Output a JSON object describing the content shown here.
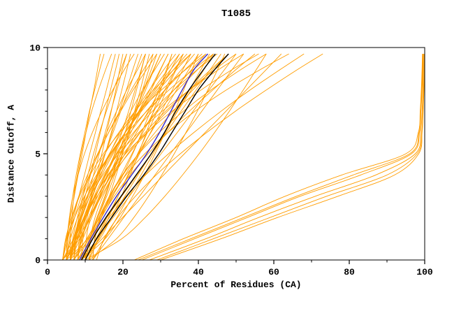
{
  "figure": {
    "title": "T1085",
    "xlabel": "Percent of Residues (CA)",
    "ylabel": "Distance Cutoff, A"
  },
  "chart_data": {
    "type": "line",
    "title": "T1085",
    "xlabel": "Percent of Residues (CA)",
    "ylabel": "Distance Cutoff, A",
    "xlim": [
      0,
      100
    ],
    "ylim": [
      0,
      10
    ],
    "grid": false,
    "legend": null,
    "frame": "box",
    "x_major_ticks": [
      0,
      20,
      40,
      60,
      80,
      100
    ],
    "x_minor_ticks": [
      10,
      30,
      50,
      70,
      90
    ],
    "y_major_ticks": [
      0,
      5,
      10
    ],
    "y_minor_ticks": [
      1,
      2,
      3,
      4,
      6,
      7,
      8,
      9
    ],
    "colors": {
      "ensemble": "#ff9d00",
      "highlight_black": "#000000",
      "highlight_blue": "#3528c9"
    },
    "cutoffs": [
      0,
      1,
      2,
      3,
      4,
      5,
      6,
      7,
      8,
      9,
      9.7
    ],
    "groups": [
      {
        "name": "predicted-models",
        "color": "#ff9d00",
        "stroke_width": 0.9,
        "curves": [
          [
            5,
            7.6,
            10.2,
            12.7,
            15.3,
            17.9,
            20.5,
            23.1,
            25.6,
            28.2,
            30
          ],
          [
            6,
            6.9,
            8.6,
            10.8,
            13.4,
            16.4,
            19.6,
            23.2,
            27,
            31,
            34
          ],
          [
            7,
            7.3,
            8.3,
            9.9,
            12.3,
            15.2,
            18.9,
            23.2,
            28.1,
            33.7,
            38
          ],
          [
            4,
            8.5,
            11.3,
            13.7,
            15.8,
            17.8,
            19.7,
            21.5,
            23.2,
            24.9,
            26
          ],
          [
            8,
            9.1,
            11.2,
            13.8,
            17,
            20.6,
            24.6,
            28.9,
            33.5,
            38.4,
            42
          ],
          [
            9,
            9.4,
            10.5,
            12.4,
            15.1,
            18.5,
            22.8,
            27.8,
            33.5,
            40,
            45
          ],
          [
            5,
            8.1,
            11.2,
            14.3,
            17.4,
            20.5,
            23.6,
            26.7,
            29.8,
            32.8,
            35
          ],
          [
            6,
            10.5,
            13.3,
            15.7,
            17.8,
            19.8,
            21.7,
            23.5,
            25.2,
            26.9,
            28
          ],
          [
            10,
            11.3,
            13.6,
            16.5,
            20,
            24.1,
            28.5,
            33.3,
            38.5,
            44,
            48
          ],
          [
            7,
            10.4,
            13.8,
            17.2,
            20.6,
            24,
            27.4,
            30.8,
            34.2,
            37.6,
            40
          ],
          [
            4,
            7.7,
            10,
            11.9,
            13.7,
            15.3,
            16.9,
            18.3,
            19.7,
            21.1,
            22
          ],
          [
            8,
            10.9,
            13.8,
            16.7,
            19.5,
            22.4,
            25.3,
            28.2,
            31.1,
            34,
            36
          ],
          [
            11,
            11.4,
            12.6,
            14.7,
            17.6,
            21.3,
            25.9,
            31.3,
            37.6,
            44.6,
            50
          ],
          [
            5,
            7.1,
            9.1,
            11.2,
            13.2,
            15.3,
            17.4,
            19.4,
            21.5,
            23.6,
            25
          ],
          [
            6,
            7.3,
            9.6,
            12.5,
            16,
            20.1,
            24.5,
            29.3,
            34.5,
            40,
            44
          ],
          [
            9,
            15.3,
            19.3,
            22.6,
            25.7,
            28.5,
            31.2,
            33.7,
            36.1,
            38.4,
            40
          ],
          [
            7,
            9.4,
            11.7,
            14.1,
            16.5,
            18.8,
            21.2,
            23.6,
            26,
            28.3,
            30
          ],
          [
            10,
            11.5,
            14.2,
            17.7,
            21.9,
            26.7,
            31.9,
            37.6,
            43.8,
            50.2,
            55
          ],
          [
            12,
            12.5,
            13.9,
            16.4,
            19.8,
            24.2,
            29.6,
            36,
            43.3,
            51.6,
            58
          ],
          [
            4,
            6.9,
            9.8,
            12.7,
            15.5,
            18.4,
            21.3,
            24.2,
            27.1,
            30,
            32
          ],
          [
            5,
            8,
            10,
            11.6,
            13.1,
            14.4,
            15.7,
            16.9,
            18.1,
            19.2,
            20
          ],
          [
            6,
            7,
            8.8,
            11.2,
            13.9,
            17.1,
            20.6,
            24.4,
            28.5,
            32.8,
            36
          ],
          [
            8,
            11.9,
            15.8,
            19.7,
            23.7,
            27.6,
            31.5,
            35.4,
            39.4,
            43.3,
            46
          ],
          [
            9,
            13.9,
            16.9,
            19.6,
            21.9,
            24.1,
            26.2,
            28.1,
            30,
            31.8,
            33
          ],
          [
            7,
            7.5,
            8.9,
            11.3,
            14.7,
            18.9,
            24.2,
            30.4,
            37.6,
            45.7,
            52
          ],
          [
            5,
            5.8,
            7.2,
            9,
            11.1,
            13.5,
            16.2,
            19.1,
            22.2,
            25.6,
            28
          ],
          [
            10,
            13.5,
            17,
            20.5,
            24,
            27.5,
            31,
            34.5,
            38.1,
            41.6,
            44
          ],
          [
            6,
            7.9,
            9.7,
            11.6,
            13.4,
            15.3,
            17.1,
            19,
            20.9,
            22.7,
            24
          ],
          [
            11,
            18.3,
            22.9,
            26.8,
            30.3,
            33.6,
            36.7,
            39.7,
            42.5,
            45.2,
            47
          ],
          [
            8,
            8.8,
            10.2,
            12,
            14.1,
            16.5,
            19.2,
            22.1,
            25.2,
            28.6,
            31
          ],
          [
            4,
            5.1,
            7.2,
            9.8,
            13,
            16.6,
            20.6,
            24.9,
            29.5,
            34.4,
            38
          ],
          [
            9,
            13.2,
            17.4,
            21.7,
            25.9,
            30.1,
            34.4,
            38.6,
            42.8,
            47.1,
            50
          ],
          [
            5,
            5.4,
            6.6,
            8.5,
            11.3,
            14.8,
            19.2,
            24.3,
            30.2,
            36.9,
            42
          ],
          [
            7,
            10.9,
            13.3,
            15.4,
            17.2,
            18.9,
            20.6,
            22.1,
            23.6,
            25,
            26
          ],
          [
            6,
            7.4,
            9.9,
            13.2,
            17.1,
            21.5,
            26.5,
            31.8,
            37.5,
            43.5,
            48
          ],
          [
            10,
            12.9,
            15.8,
            18.7,
            21.5,
            24.4,
            27.3,
            30.2,
            33.1,
            36,
            38
          ],
          [
            8,
            8.5,
            10,
            12.6,
            16.2,
            20.7,
            26.4,
            33,
            40.7,
            49.3,
            56
          ],
          [
            12,
            16.1,
            20.2,
            24.4,
            28.5,
            32.6,
            36.8,
            40.9,
            45,
            49.1,
            52
          ],
          [
            4,
            5.4,
            6.9,
            8.3,
            9.8,
            11.2,
            12.7,
            14.1,
            15.6,
            17,
            18
          ],
          [
            5,
            5.3,
            5.9,
            6.7,
            7.6,
            8.7,
            9.9,
            11.1,
            12.5,
            13.9,
            15
          ],
          [
            6,
            6.1,
            6.5,
            7,
            7.9,
            8.9,
            10.2,
            11.7,
            13.5,
            15.5,
            17
          ],
          [
            4,
            5,
            6.1,
            7.1,
            8.1,
            9.2,
            10.2,
            11.2,
            12.3,
            13.3,
            14
          ],
          [
            7,
            7.5,
            8.3,
            9.4,
            10.7,
            12.2,
            13.8,
            15.6,
            17.5,
            19.5,
            21
          ],
          [
            5,
            5.2,
            5.8,
            6.7,
            8.1,
            9.8,
            11.9,
            14.4,
            17.3,
            20.5,
            23
          ],
          [
            6,
            7.3,
            8.7,
            10,
            11.4,
            12.7,
            14,
            15.4,
            16.7,
            18.1,
            19
          ],
          [
            9,
            14.5,
            19.9,
            25.4,
            30.8,
            36.3,
            41.8,
            47.3,
            52.7,
            58.2,
            62
          ],
          [
            11,
            12.9,
            16.4,
            20.8,
            26,
            32.1,
            38.8,
            46,
            53.7,
            62,
            68
          ],
          [
            13,
            15,
            18.6,
            23.3,
            28.8,
            35.2,
            42.2,
            49.8,
            58,
            66.6,
            73
          ],
          [
            10,
            19.7,
            25.9,
            31.1,
            35.8,
            40.2,
            44.3,
            48.2,
            51.9,
            55.5,
            58
          ],
          [
            12,
            12.6,
            14.2,
            16.9,
            20.8,
            25.8,
            31.9,
            39.1,
            47.4,
            56.8,
            64
          ],
          [
            23,
            36,
            50,
            63,
            78,
            95,
            98.3,
            98.8,
            99.1,
            99.3,
            99.4
          ],
          [
            25,
            39,
            53,
            67,
            83,
            96.5,
            98.6,
            99,
            99.3,
            99.5,
            99.6
          ],
          [
            27,
            42,
            56,
            71,
            87,
            97.5,
            98.9,
            99.3,
            99.5,
            99.6,
            99.7
          ],
          [
            29,
            44,
            59,
            74,
            90,
            98,
            99.2,
            99.5,
            99.7,
            99.8,
            99.9
          ],
          [
            24,
            38,
            52,
            66,
            81,
            96,
            98.5,
            99,
            99.2,
            99.4,
            99.5
          ],
          [
            30,
            46,
            61,
            77,
            92,
            98.4,
            99.3,
            99.6,
            99.8,
            99.9,
            100
          ],
          [
            6,
            8.7,
            11.4,
            14,
            16.7,
            19.4,
            22.1,
            24.8,
            27.5,
            30.1,
            32
          ],
          [
            7,
            7.9,
            9.6,
            11.8,
            14.4,
            17.4,
            20.6,
            24.2,
            28,
            32,
            35
          ],
          [
            9,
            11.1,
            13.1,
            15.2,
            17.2,
            19.3,
            21.4,
            23.4,
            25.5,
            27.6,
            29
          ],
          [
            5,
            6.1,
            8,
            10.5,
            13.4,
            16.8,
            20.6,
            24.6,
            29,
            33.6,
            37
          ],
          [
            8,
            11.9,
            14.3,
            16.4,
            18.2,
            19.9,
            21.6,
            23.1,
            24.6,
            26,
            27
          ],
          [
            10,
            10.3,
            11.3,
            12.9,
            15.3,
            18.2,
            21.9,
            26.2,
            31.1,
            36.7,
            41
          ],
          [
            6,
            7.5,
            9.1,
            10.6,
            12.2,
            13.7,
            15.3,
            16.8,
            18.4,
            19.9,
            21
          ],
          [
            11,
            13.6,
            16.2,
            18.7,
            21.3,
            23.9,
            26.5,
            29.1,
            31.6,
            34.2,
            36
          ],
          [
            4,
            4.8,
            6.4,
            8.3,
            10.6,
            13.3,
            16.2,
            19.4,
            22.7,
            26.4,
            29
          ],
          [
            7,
            7.4,
            8.6,
            10.5,
            13.3,
            16.8,
            21.2,
            26.3,
            32.2,
            38.9,
            44
          ],
          [
            5,
            10.7,
            14.3,
            17.3,
            20,
            22.6,
            25,
            27.3,
            29.5,
            31.6,
            33
          ],
          [
            8,
            9,
            10.9,
            13.3,
            16.2,
            19.5,
            23.1,
            27,
            31.2,
            35.7,
            39
          ],
          [
            12,
            15.2,
            18.4,
            21.6,
            24.8,
            28,
            31.2,
            34.4,
            37.6,
            40.8,
            43
          ],
          [
            6,
            6.7,
            7.9,
            9.4,
            11.3,
            13.4,
            15.7,
            18.3,
            21,
            24,
            26
          ]
        ]
      },
      {
        "name": "highlighted-models-black",
        "color": "#000000",
        "stroke_width": 1.4,
        "curves": [
          [
            9,
            12,
            15.5,
            19.5,
            23.5,
            27.5,
            31,
            34,
            37.5,
            41.5,
            44.5
          ],
          [
            10,
            13,
            17,
            21,
            25.5,
            29.5,
            33,
            36.5,
            40,
            44.5,
            48
          ]
        ]
      },
      {
        "name": "highlighted-model-blue",
        "color": "#3528c9",
        "stroke_width": 1.4,
        "curves": [
          [
            8.5,
            11.5,
            14.8,
            18.3,
            22.3,
            26.3,
            29.7,
            32.7,
            35.7,
            39,
            42.5
          ]
        ]
      }
    ]
  }
}
